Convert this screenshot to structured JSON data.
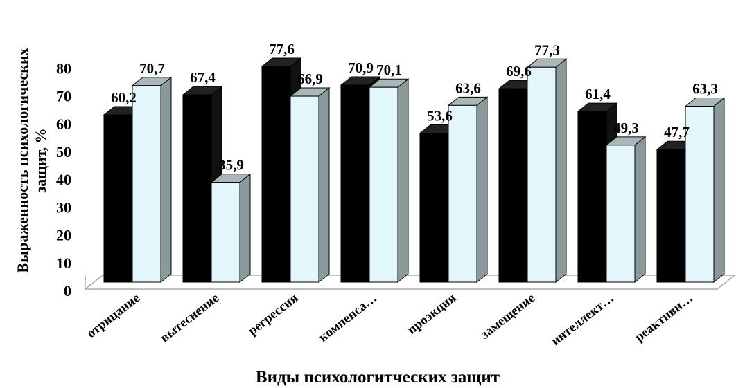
{
  "chart_data": {
    "type": "bar",
    "title": "",
    "xlabel": "Виды психологитческих защит",
    "ylabel_line1": "Выраженность психологических",
    "ylabel_line2": "защит, %",
    "categories": [
      "отрицание",
      "вытеснение",
      "регрессия",
      "компенса…",
      "проэкция",
      "замещение",
      "интеллект…",
      "реактивн…"
    ],
    "series": [
      {
        "values": [
          60.2,
          67.4,
          77.6,
          70.9,
          53.6,
          69.6,
          61.4,
          47.7
        ],
        "color": "#000000"
      },
      {
        "values": [
          70.7,
          35.9,
          66.9,
          70.1,
          63.6,
          77.3,
          49.3,
          63.3
        ],
        "color": "#e3f6fb"
      }
    ],
    "data_labels": [
      [
        "60,2",
        "67,4",
        "77,6",
        "70,9",
        "53,6",
        "69,6",
        "61,4",
        "47,7"
      ],
      [
        "70,7",
        "35,9",
        "66,9",
        "70,1",
        "63,6",
        "77,3",
        "49,3",
        "63,3"
      ]
    ],
    "yticks": [
      "0",
      "10",
      "20",
      "30",
      "40",
      "50",
      "60",
      "70",
      "80"
    ],
    "ylim": [
      0,
      80
    ],
    "grid": false,
    "legend": "none",
    "style": "3d-clustered-column"
  }
}
